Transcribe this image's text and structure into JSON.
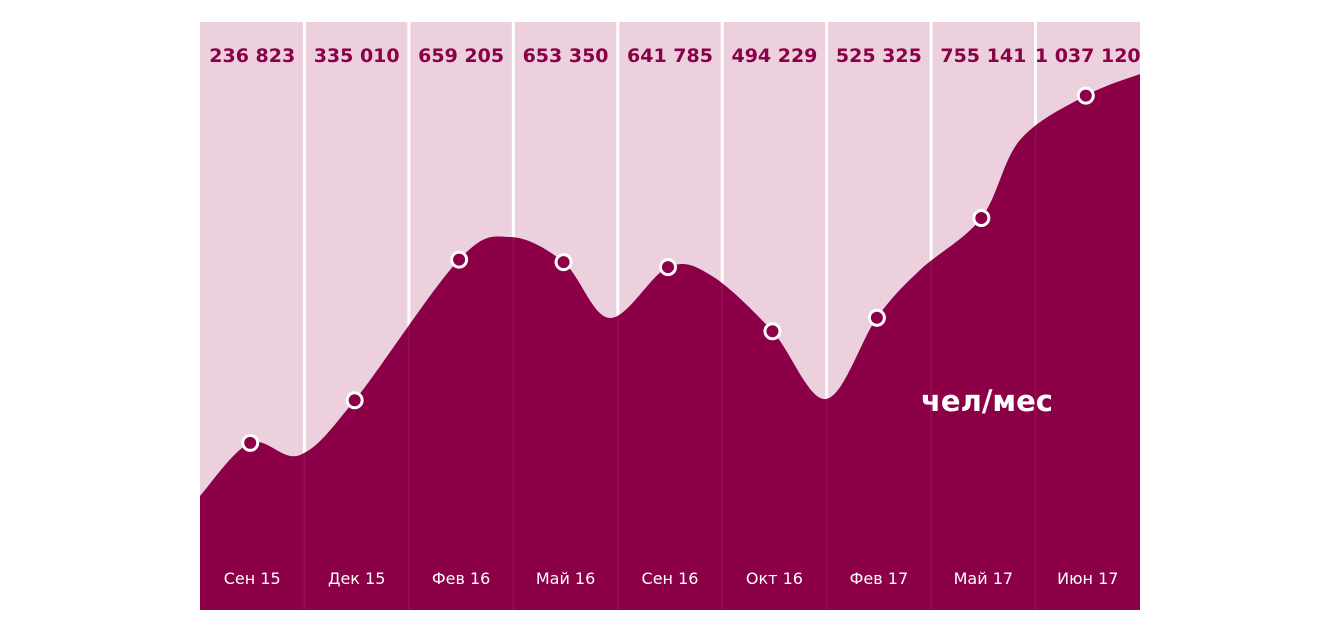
{
  "chart_data": {
    "type": "area",
    "categories": [
      "Сен 15",
      "Дек 15",
      "Фев 16",
      "Май 16",
      "Сен 16",
      "Окт 16",
      "Фев 17",
      "Май 17",
      "Июн 17"
    ],
    "values": [
      236823,
      335010,
      659205,
      653350,
      641785,
      494229,
      525325,
      755141,
      1037120
    ],
    "value_labels": [
      "236 823",
      "335 010",
      "659 205",
      "653 350",
      "641 785",
      "494 229",
      "525 325",
      "755 141",
      "1 037 120"
    ],
    "unit_label": "чел/мес",
    "grid": false,
    "legend": "none"
  },
  "colors": {
    "area_fill": "#8b0046",
    "panel_bg": "#ecd0de",
    "divider": "#ffffff",
    "value_text": "#8b0046",
    "category_text": "#ffffff",
    "unit_text": "#ffffff",
    "marker_stroke": "#ffffff"
  }
}
